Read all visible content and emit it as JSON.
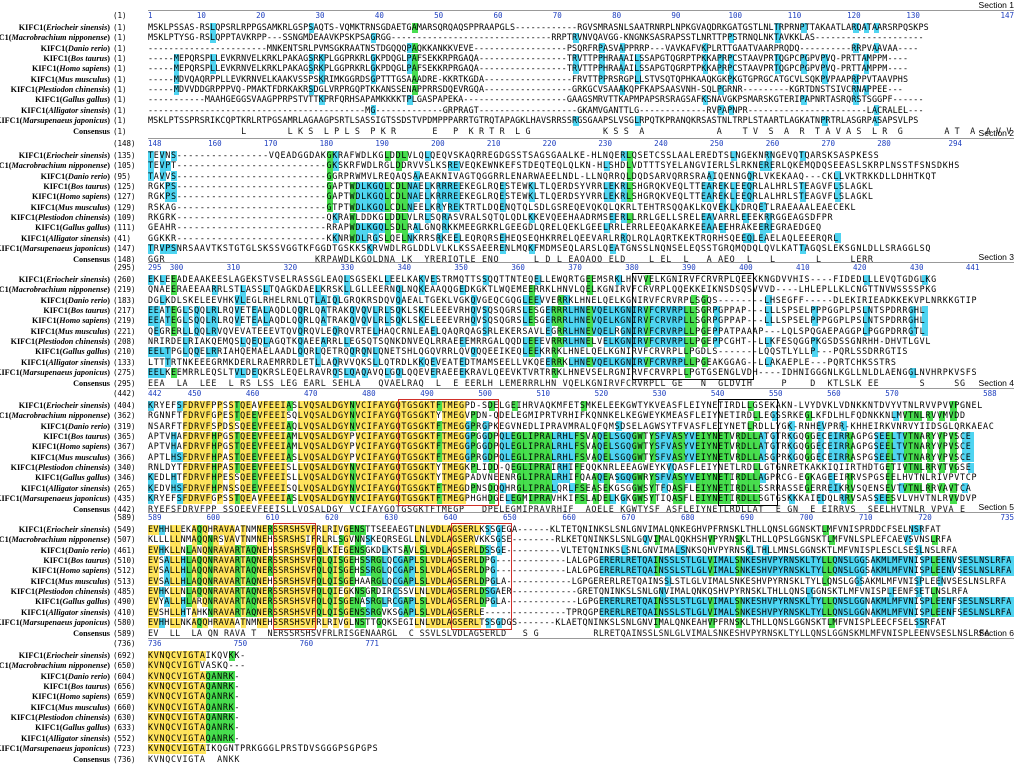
{
  "colors": {
    "identical": "#ffe14d",
    "conserved": "#33d93b",
    "similar": "#3ccff0",
    "ruler": "#1e3fbf",
    "box_black": "#000000",
    "box_red": "#d0302a"
  },
  "species": [
    {
      "gene": "KIFC1",
      "organism": "Eriocheir sinensis"
    },
    {
      "gene": "KIFC1",
      "organism": "Macrobrachium nipponense"
    },
    {
      "gene": "KIFC1",
      "organism": "Danio rerio"
    },
    {
      "gene": "KIFC1",
      "organism": "Bos taurus"
    },
    {
      "gene": "KIFC1",
      "organism": "Homo sapiens"
    },
    {
      "gene": "KIFC1",
      "organism": "Mus musculus"
    },
    {
      "gene": "KIFC1",
      "organism": "Plestiodon chinensis"
    },
    {
      "gene": "KIFC1",
      "organism": "Gallus gallus"
    },
    {
      "gene": "KIFC1",
      "organism": "Alligator sinensis"
    },
    {
      "gene": "KIFC1",
      "organism": "Marsupenaeus japonicus"
    }
  ],
  "consensus_label": "Consensus",
  "sections": [
    {
      "label": "Section 1",
      "start": "(1)",
      "ticks": [
        "1",
        "10",
        "20",
        "30",
        "40",
        "50",
        "60",
        "70",
        "80",
        "90",
        "100",
        "110",
        "120",
        "130",
        "147"
      ],
      "row_starts": [
        "(1)",
        "(1)",
        "(1)",
        "(1)",
        "(1)",
        "(1)",
        "(1)",
        "(1)",
        "(1)",
        "(1)",
        "(1)"
      ],
      "seqs": [
        "MSKLPSSAS-RSLQPSRLRPPGSAMKRLGSPSAQTS-VQMKTRNSGDAETGAMARSQRQAQSPPRAAPGLS------------RGVSMRASNLSAATRNRPLNPKGVAQDRKGATGSTLNLTRPRNPTTAKAATLARQATAARSRPQSKPS",
        "MSKLPTYSG-RSLQPPTAVKRPP---SSNGMDEAAVKPSKPSAGRGG-------------------------------RRPTRVNVQAVGG-KNGNKSASRAPSSTLNRTTPPSTRNQLNKTAVKKLAS---------------------",
        "-----------------------MNKENTSRLPVMSGKRAATNSTDGQQQPAQKKANKKVEVE------------------PSQRFRPASVAPPRRP---VAVKAFVKPLRTTGAATVAARPRQDQ----------RRPVAAVAA----",
        "-----MEPQRSPLLEVKRNVELKRKLPAKAGSRKPLGGPRKRLGKPDQGLPAFSEKKRPRGAQA-----------------TRVTTPPHRAAAILSSAPGTQGRPTPKKAPRPCSTAAVPRTQGPCPGPVPVQ-PRTTAMPPM----",
        "-----MEPQRSPLLEVKRNVELKRKLPAKAGSRKPLGGPRKRLGKPDQGLPAFSEKKRPRGAQA-----------------TRVTTPPHRAAAILSSAPGTQGRPTPKKAPRPCSTAAVPRTQGPCPGPVPVQ-PRTTAMPPM----",
        "-----MDVQAQRPPLLEVKRNVELKAAKVSSPSKRIMKGGRDSGPTTTGSAAADRE-KKRTKGDA-----------------FRVTTPPRSRGPLLSTVSQTQPHKAAQKGKPKGTGPRGCATGCVLSQKPVPAAPRPPVTAAVPHS",
        "-----MDVVDDGRPPPVQ-PMAKTFDRKAKRSDGLVRPRGQPTKKANSSENAPPRRSDQEVRGQA-----------------GRKGCVSAAAKQPFKAPSAASVNH-SQLPGRNR---------KGRTDNSTSIVCRNAPPEE---",
        "-----------MAAHGEGGSVAAGPPRPSTVTTKPRFQRHSAPAMKKKKTPLGASPAPEKA--------------------GAAGSMRVTTKAPMPAPSRSRAGSAFKSNAVGKPSMARSKGTERIPAPNRTASRQRSTSGGPF------",
        "------------------------------------------MG-------------GRPRAGT-------------------GKAMVGANTTLG-------------RVPAPNPR-----------------------LACRALEL---",
        "MSKLPTSSPRSRIKCQPTKRLRTPGSAMRLAGAAGPSRTLSASSIGTSSDSTVPDMPPPARRTGTRQTAPAGKLHAVSRRSSRGSGAAPSLVSGLRPQTKPRANQKRSASTNLTRPLSTAARTLAGKATNPRTRLASGRPASAPSVLPS"
      ],
      "consensus": "                  L        L K S  L P L S  P K R       E   P  K R T R  L G              K S S  A              A    T V  S  A  R  T A V A S  L R  G        A T  A  A V V"
    },
    {
      "label": "Section 2",
      "start": "(148)",
      "ticks": [
        "148",
        "160",
        "170",
        "180",
        "190",
        "200",
        "210",
        "220",
        "230",
        "240",
        "250",
        "260",
        "270",
        "280",
        "294"
      ],
      "row_starts": [
        "(135)",
        "(105)",
        "(95)",
        "(125)",
        "(127)",
        "(129)",
        "(109)",
        "(111)",
        "(41)",
        "(147)",
        "(148)"
      ],
      "seqs": [
        "TEVNS----------------VQEADGGDAKGKRAFWDLKGLDDLVLQLQEQVSKAQRREGDGSSTSAGSGAALKE-HLNQERLQSETCSSLAALEREDTSLNGEKNRNGEVQTQARSKSASPKESS",
        "TEVPT--------------------------GKSKRFWDLRGLDDRVVSLKSREVEQKEWNKEFSTDEQTEQLQLKN-HLSHDLVDTTTSYELANGVIERLSLRKNERERLQKEMQDQSEEASLSKRPLNSSTFSNSDKHS",
        "TAVVS--------------------------GGRPRWMVLREQAQSAAEAKNIVAGTQGGRRLENARWAEELNDL-LLNQRRQLDQDSARVQRRSRAAIQENNGQRLVKEKAAQ---CKLLVKTRKKDLLDHHTKQT",
        "RGKPS--------------------------GAPTWDLKGQLCDLNAELKRRREEKEGLRQESTEWKLTLQERDSYVRRLEKRLSHGRQKVEQLTTEAREKLEEQRLALHRLSTEAGVFLSLAGKL",
        "RGKPS--------------------------GAPTWDLKGQLCDLNAELKRRREEKEGLRQESTEWKLTLQERDSYVRRLEKRLSHGRQKVEQLTTEAREKLEEQRLALHRLSTEAGVFLSLAGKL",
        "RSKAG--------------------------GTPTWDLKGQLCDLNEELKRYREKTRTLDQENQTQLSDLGSREQEVQKQLQKRLTEHTRSQQAKLKQVEKLKDRQETLRAEAAALEAECEKL",
        "RKGRK--------------------------QKRAWLDDKGLDDLVLRLSQRASVRALSQTQLQDLKKEVQEEHAADRMSEERLLRRLGELLSRELEAVARRLEEEKRRGGEAGSDFPR",
        "GEAHR--------------------------RRAPWDLKGQLSDLRALGNQRKKMEEGRKRLGEEGDLQRELQEKLGEELRRLERRLEEQAKARKEEAAEEHRAKEEREGRAEDGEQ",
        "GGKKR--------------------------KKNRWDLRGSLQELNKRRSRKEELEQRQRSEHEQSEQHKRRELQEEVARLRRQLRQLAQRTKEKTRQRHSQEEQLEAELAQLEEERQRL",
        "TRVPSNRSAAVTKSTGTGLSKSSVGGTKFGGDTGSKKSKRVWDLRGLDDLVLKLKSSAEERENLMQKFMDMSEQLARSLQEATGNSSLNQNSELEQSSTGRQMQDQLQVLKATTAGQSLEKSGNLDLLSRAGGLSQ"
      ],
      "consensus": "GGR                          KRPAWDLKGQLDNA LK  YRERIQTLE ENQ      L D L EAQAQQ ELD    L EL  L   A AEQ  L   L       L     LERR"
    },
    {
      "label": "Section 3",
      "start": "(295)",
      "ticks": [
        "295",
        "300",
        "310",
        "320",
        "330",
        "340",
        "350",
        "360",
        "370",
        "380",
        "390",
        "400",
        "410",
        "420",
        "430",
        "441"
      ],
      "row_starts": [
        "(260)",
        "(219)",
        "(183)",
        "(217)",
        "(219)",
        "(221)",
        "(208)",
        "(210)",
        "(133)",
        "(275)",
        "(295)"
      ],
      "seqs": [
        "EKLEEADEAAKEESLAGEKSTVSELRASSGLEAQLSGSEKLLEELKAKVESTRMQTTSSQQTTNTEQELLEWQRTGEEMSRKLHNVVELKGNIRVFCRVRPLQEEKKNGDVVHIS----FIDEDLLLEVQTGDGLKG",
        "QNAEERAEEAARRLSTLASSLTQAGKDAELKRSKLLGLLEERNQLNQKEAAQQGEDKGKTLWQEMEERRKLHNVLQELKGNIRVFCRVRPLQQEKKEIKNSDSQSVVVD----LHLEPLLKLCNGTTNVWSSSSPKG",
        "DGLKDLSKELEEVHKVLEGLRHELRNLQTLAIQLGRQKRSDQVQAEALTGEKLVGKQVGEQCGQGLEEVVERRKLHNELQELKGNIRVFCRVRPLSGQS--------LHSEGFF-----DLEKIRIEADKKEKVPLNRKKGTIP",
        "EEATEGLSQQLRLRQVETEALAQDLQQRLQATRAKQVQVLRLSQKLSKELEEEVRHQVSQSQGRSLESGERRRLHNEVQELKGNIRVFCRVRPLLSGRPGPPAP---LLLSPSELPPPGGPLPSLNTSPDRRGHL",
        "EEATEGLSQQLRLRQVETEALAQDLQQRLQATRAKQVQVLRLSQKLSKELEEEVRHQVSQSQGRSLESGERRRLHNEVQELKGNIRVFCRVRPLLSGRPGPPAP---LLLSPSELPPPGGPLPSLNTSPDRRGHL",
        "QEGRERLLQQLRVQVEVATEEEVTQVQRQVLEQRQVRTELHAQCRNLEAELQAQRQAGSRLEKERSAVLEGRRLHNEVQELRGNIRVFCRVRPLLPGEPPATPAAAP---LQLSPQGAEPAGGPLPGGPDRRGTL",
        "NRIRDELRIAKQEMQSLQEQLAGQTKQAEEARRLLEGSQTSQNKDNVEQLRRAEEEMRRGALQQDLEEEVRRRLHNELVELKGNIRVFCRVRPLLPGEPPCGHT--LLKFESQGGPKGSDSSGNRHH-DHVTLGVL",
        "EELTPGLQQELRRIAHQEMAELAADLQQRLQETRQQRQNLQNETSHLQGQVRRLQVQQQEEIKEQLEEKRRKLHNELQELKGNIRVFCRVRPLLPGDLS-------LQQSTLYLLP---PQRLSSDRRGTIS",
        "LTTTRTNKEEEGRMKDERLRAEMRRDLETLLAQRVVQKSLLQTRDLKKQEVEATEDTMAMSEELLVKQEERRKLHNEVQELKGNIRVFCRVRPLLPGEAKGGAG--LLAKAEPLE---PQRTCHKSSTRS",
        "EELKEEMRRLEQSLTVLDEQKRSLEQELRAVRQSLQAQAVQLGQLQQEVERAEEEKRAVLQEEVKTVRTRRKLHNEVSELRGNIRVFCRVRPLLPGTGSENGLVDH----IDHNIGGGNLKGLLNLDLAENGGLNVHRPKVSFS"
      ],
      "consensus": "EEA  LA  LEE  L RS LSS LEG EARL SEHLA   QVAELRAQ  L  E EERLH LEMERRRLHN VQELKGNIRVFCRVRPLL GE   N  GLDVIH     P    D  KTLSLK EE       S     SG"
    },
    {
      "label": "Section 4",
      "start": "(442)",
      "ticks": [
        "442",
        "450",
        "460",
        "470",
        "480",
        "490",
        "500",
        "510",
        "520",
        "530",
        "540",
        "550",
        "560",
        "570",
        "588"
      ],
      "row_starts": [
        "(404)",
        "(362)",
        "(319)",
        "(365)",
        "(367)",
        "(366)",
        "(340)",
        "(346)",
        "(265)",
        "(435)",
        "(442)"
      ],
      "seqs": [
        "KRYEFSFDRVFPPSSTQEAVFEEIASLVQSALDGYNVCIFAYGQTGSGKTFTMEGPD-SDELGEIHRVAQKMFETSMKELEEKGWTYKVEASFLEIYNETIRDLLGSEKAKN-LVYDVKLVDNKKNTDVYVTNLRVVPVVPGNEL",
        "RGNNFTFDRVFGPESTQEEVFEEISQLVQSALDGYNVCIFAYGQTGSGKTYTMEGVPDN-QDELEGMIPRTVRHIFKQNNKELKEGWEYKMEASFLEIYNETIRDLLEGSSRKEGLKFDLHLFQDNKKNLMVTNLRVVMVDD",
        "NSARFTFDRVFSPDSSQEEVFEEIAQLVQSALDGYNVCIFAYGQTGSGKTFTMEGGPRGPKEGVNEDLIPRAVMRALQFQMSDSELAGWSYTFVASFLEIYNETLRDLLYGK-RNHEVPRR-KHHEIRKVNRVYIIDSGLQRKAEAC",
        "APTVHAFDRVFHPGSTQEEVFEEIAMLVQSALDGYPVCIFAYGQTGSGKTFTMEGGPGGDPQLEGLIPRALRHLFSVAQELSGQGWTYSFVASYVEIYNETVRDLLATGTRKGQGGECEIRRAGPGSEELTVTNARYVPVSCE",
        "APTVHAFDRVFHPGSTQEEVFEEIAMLVQSALDGYPVCIFAYGQTGSGKTFTMEGGPGGDPQLEGLIPRALRHLFSVAQELSGQGWTYSFVASYVEIYNETVRDLLATGTRKGQGGECEIRRAGPGSEELTVTNARYVPVSCE",
        "APTLHSFDRVFHPASTQEEVFEEIASLVQSALDGYPVCIFAYGQTGSGKTFTMEGGPRGDPQLEGLIPRALRHLFSVAQELSGQGWTYSFVASYVEIYNETVRDLLASGPRKGQGGECEIRRASPGSEELTVTNARYVPVSCE",
        "RNLDYTFDRVFHPASTQEEVFEEISLLVQSALDGYNVCIFAYGQTGSGKTYTMEGKPLIDD-QEGLIPRAIRHIFEQQKNRLEEAGWEYKVQASFLEIYNETLRDLLGTGNRETKAKKIQIIRTHDTGETIVTNLRRVTVGSE",
        "KEDLHTFDRVFHPESSQEEVFEEISLLVQSALDGYNVCIFAYGQTGSGKTYTMEGPADVNEENRGLIPRALRHIFQAAQEASGQGWRYSFVASYVEIYNETIRDLLAGPRCG-EGKAGEEIRRVSPGSEELHVTNLRIVPVTCP",
        "KEDVHSFDRVFHPNSSQEEVFEEISQLVQSALDGYNVCIFAYGQTGSGKTFTMEGDPNSDQQHRGLIPRALQRLFSEASEKGSGGWSYTFQASFLEIYNETIRDLLSSRRASSEGERREIKRVSQENSEVTVTNLRRVAVTCA",
        "KRYEFSFDRVFGPSSTQEAVFEEIASLVQSALDGYNVCIFAYGQTGSGKTFTMEGPHGHDGELEGMIPRAVHKIFSLADELKGKGWSYTIQASFLEIYNETIRDLLSGTGSKKKAIEDQLRRVSASSEESVLVHVTNLRVVDVP"
      ],
      "consensus": "RYEFSFDRVFPP SSQEEVFEEISLLVQSALDGY VCIFAYGQTGSGKTFTMEGP   DPELEGMIPRAVRHIF  AQELE KGWTYSF ASFLEIYNETLRDLLAT  E GN  E EIRRVS  SEELHVTNLR VPVA E"
    },
    {
      "label": "Section 5",
      "start": "(589)",
      "ticks": [
        "589",
        "600",
        "610",
        "620",
        "630",
        "640",
        "650",
        "660",
        "670",
        "680",
        "690",
        "700",
        "710",
        "720",
        "735"
      ],
      "row_starts": [
        "(549)",
        "(507)",
        "(461)",
        "(510)",
        "(512)",
        "(513)",
        "(485)",
        "(490)",
        "(410)",
        "(580)",
        "(589)"
      ],
      "seqs": [
        "EVHHLLEKAQQHRAVAATNMNERSSRSHSVFRLRIVGENSTTSEEAEGTLNLVDLAGSERLKSSGEGA------KLTETQNINKSLSNLGNVIMALQNKEGHVPFRNSKLTHLLQNSLGGNSKTLMFVNISPRDDCFSELNSRFAT",
        "KLLLLLNMAQQNRSVAVTNMNEHSSRSHSIFRLRLSGVNNSKEQRSEGLLNLVDLAGSERVKKSGSE--------RLKETQNINKSLSNLGQVIMALQQKHSHVPYRNSKLTHLLQPSLGGNSKTLMFVNLSPLEFCAEVSVNSLRFA",
        "EVHKLLNLANQNRAVARTAQNEHSSRSHSVFQLKIEGENSGKDLKTSAVLSLVDLAGSERLDSSGE----------VLTETQNINKSLSNLGNVIMALSNKSQHVPYRNSKLTHLLMNSLGGNSKTLMFVNISPLESCLSESLNSLRFA",
        "EVSALLHLAQQNRAVARTAQNERSSRSHSVFQLQISGEHSSRGLQCGAPLSLVDLAGSERLDPG-------------LALGPGERERLRETQAINSSLSTLGLVIMALSNKESHVPYRNSKLTYLLQNSLGGSAKMLMFVNISPLEENVSESLNSLRFA",
        "EVSALLHLAQQNRAVARTAQNERSSRSHSVFQLQISGEHSSRGLQCGAPLSLVDLAGSERLDPG-------------LALGPGERERLRETQAINSSLSTLGLVIMALSNKESHVPYRNSKLTYLLQNSLGGSAKMLMFVNISPLEENVSESLNSLRFA",
        "EVSALLHLAQQNRAVARTAQNEHSSRSHSVFQLQISGEHAARGLQCGAPLSLVDLAGSERLDPGLA------------LGPGERERLRETQAINSSLSTLGLVIMALSNKESHVPYRNSKLTYLLQNSLGGSAKMLMFVNISPLEENVSESLNSLRFA",
        "EVHKLLNLAQQNRAVARTAQNERSSRSHSVFQLQIEGKNSGRDIRCSSVLNLVDLAGSERLDSGAER------------GRETQNINKSLSNLGNVIMALQNKQSHVPYRNSKLTHLLQNSLGGNSKTLMFVNISPLEENFSETLNSLRFA",
        "EVYALLHLARQNRAVARTAQNERSSRSHSVFQLQISGENASRGLRCGAPLSLVDLAGSERLDPGLA-------------LGPGERERLRETQAINSSLSTLGLVIMALSNKESHVPYRNSKLTYLLQNSLGGNAKMLMFVNISPLEENFSESLNSLRFA",
        "EVSHLLHTAHKNRAVARTAQNERSSRSHSVFQLQISGENSSRGVKSGAPLSLVDLAGSERLE---------------TPRQGPERERLRETQAINSSLSTLGLVIMALSNKESHVPYRNSKLTYLLQNSLGGNAKMLMFVNISPLEENFSESLNSLRFA",
        "EVHHLLNKAQQHRAVAATNMNEHSSRSHSVFRLRIVGLNSTTGQKSEGILNLVDLAGSERLTSSGDGS-------KLAETQNINKSLSNLGNVIMALQNKEAHVPFRNSKLTHLLQNSLGGNSKTLMFVNISPLEECFSELSSRFAT"
      ],
      "consensus": "EV  LL  LA QN RAVA T  NERSSRSHSVFRLRISGENAARGL  C SSVLSLVDLAGSERLD   S G          RLRETQAINSSLSNLGLVIMALSNKESHVPYRNSKLTYLLQNSLGGNSKMLMFVNISPLEENVSESLNSLRFA"
    },
    {
      "label": "Section 6",
      "start": "(736)",
      "ticks": [
        "736",
        "750",
        "760",
        "771"
      ],
      "row_starts": [
        "(692)",
        "(650)",
        "(604)",
        "(656)",
        "(659)",
        "(660)",
        "(630)",
        "(633)",
        "(552)",
        "(723)",
        "(736)"
      ],
      "seqs": [
        "KVNQCVIGTAIKQVKK-",
        "KVNQCVIGTVASKQ---",
        "KVNQCVIGTAQANRK-",
        "KVNQCVIGTAQANRK-",
        "KVNQCVIGTAQANRK-",
        "KVNQCVIGTAQANRK-",
        "KVNQCVIGTAQANRK-",
        "KVNQCVIGTAQANRK-",
        "KVNQCVIGTAQANRK-",
        "KVNQCVIGTAIKQGNTPRKGGGLPRSTDVSGGGPSGPGPS"
      ],
      "consensus": "KVNQCVIGTA  ANKK"
    }
  ]
}
